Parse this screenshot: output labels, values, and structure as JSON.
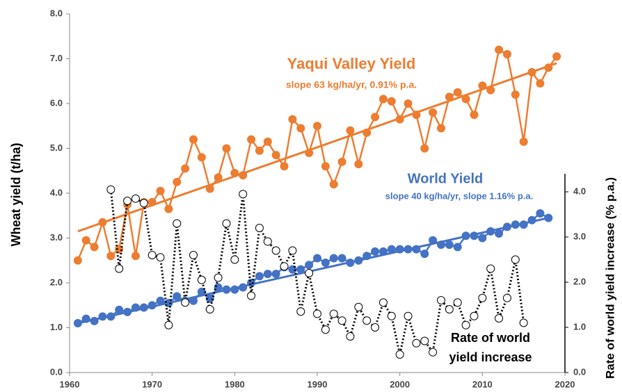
{
  "chart_data": {
    "type": "line",
    "ylabel": "Wheat yield (t/ha)",
    "y2label": "Rate of world yield increase (% p.a.)",
    "xlim": [
      1960,
      2020
    ],
    "xticks": [
      1960,
      1970,
      1980,
      1990,
      2000,
      2010,
      2020
    ],
    "ylim": [
      0,
      8
    ],
    "yticks": [
      {
        "value": 0,
        "label": "0.0"
      },
      {
        "value": 1,
        "label": "1.0"
      },
      {
        "value": 2,
        "label": "2.0"
      },
      {
        "value": 3,
        "label": "3.0"
      },
      {
        "value": 4,
        "label": "4.0"
      },
      {
        "value": 5,
        "label": "5.0"
      },
      {
        "value": 6,
        "label": "6.0"
      },
      {
        "value": 7,
        "label": "7.0"
      },
      {
        "value": 8,
        "label": "8.0"
      }
    ],
    "y2lim": [
      0,
      4.4
    ],
    "y2ticks": [
      {
        "value": 0,
        "label": "0.0"
      },
      {
        "value": 1,
        "label": "1.0"
      },
      {
        "value": 2,
        "label": "2.0"
      },
      {
        "value": 3,
        "label": "3.0"
      },
      {
        "value": 4,
        "label": "4.0"
      }
    ],
    "annotations": [
      {
        "text": "Yaqui Valley Yield",
        "color": "#ED7D31"
      },
      {
        "text": "slope 63 kg/ha/yr, 0.91% p.a.",
        "color": "#ED7D31"
      },
      {
        "text": "World Yield",
        "color": "#4472C4"
      },
      {
        "text": "slope 40 kg/ha/yr, slope 1.16% p.a.",
        "color": "#4472C4"
      },
      {
        "text": "Rate of world",
        "color": "#000000"
      },
      {
        "text": "yield increase",
        "color": "#000000"
      }
    ],
    "series": [
      {
        "color": "#ED7D31",
        "start": 1961,
        "values": [
          2.5,
          2.95,
          2.8,
          3.35,
          2.6,
          2.75,
          3.75,
          2.6,
          3.8,
          3.8,
          4.05,
          3.65,
          4.25,
          4.55,
          5.2,
          4.8,
          4.1,
          4.35,
          5.0,
          4.45,
          4.4,
          5.2,
          4.95,
          5.15,
          4.85,
          4.6,
          5.65,
          5.45,
          4.9,
          5.5,
          4.6,
          4.2,
          4.7,
          5.4,
          4.65,
          5.35,
          5.7,
          6.1,
          6.05,
          5.65,
          6.0,
          5.75,
          5.0,
          5.8,
          5.45,
          6.15,
          6.25,
          6.1,
          5.75,
          6.4,
          6.3,
          7.2,
          7.1,
          6.2,
          5.15,
          6.7,
          6.45,
          6.8,
          7.05
        ],
        "trend_x": [
          1961,
          2019
        ],
        "trend": [
          3.15,
          6.9
        ]
      },
      {
        "color": "#4472C4",
        "start": 1961,
        "values": [
          1.1,
          1.2,
          1.15,
          1.25,
          1.25,
          1.4,
          1.35,
          1.45,
          1.45,
          1.5,
          1.6,
          1.55,
          1.7,
          1.6,
          1.6,
          1.8,
          1.65,
          1.9,
          1.85,
          1.85,
          1.9,
          2.0,
          2.15,
          2.2,
          2.2,
          2.35,
          2.3,
          2.3,
          2.4,
          2.55,
          2.45,
          2.55,
          2.55,
          2.45,
          2.5,
          2.6,
          2.7,
          2.7,
          2.75,
          2.75,
          2.75,
          2.75,
          2.65,
          2.95,
          2.85,
          2.85,
          2.8,
          3.05,
          3.05,
          3.0,
          3.15,
          3.1,
          3.25,
          3.3,
          3.3,
          3.4,
          3.55,
          3.45
        ],
        "trend_x": [
          1961,
          2018
        ],
        "trend": [
          1.1,
          3.45
        ]
      },
      {
        "color": "#000000",
        "axis": "y2",
        "start": 1965,
        "values": [
          4.05,
          2.3,
          3.8,
          3.85,
          3.75,
          2.6,
          2.55,
          1.05,
          3.3,
          1.55,
          2.6,
          2.05,
          1.4,
          2.1,
          3.3,
          2.5,
          3.95,
          1.7,
          3.2,
          2.9,
          2.7,
          2.35,
          2.7,
          1.35,
          2.2,
          1.3,
          0.95,
          1.3,
          1.15,
          0.8,
          1.45,
          1.15,
          1.0,
          1.55,
          1.25,
          0.4,
          1.25,
          0.65,
          0.7,
          0.45,
          1.6,
          1.4,
          1.55,
          1.05,
          1.25,
          1.65,
          2.3,
          1.2,
          1.65,
          2.5,
          1.1
        ]
      }
    ]
  }
}
